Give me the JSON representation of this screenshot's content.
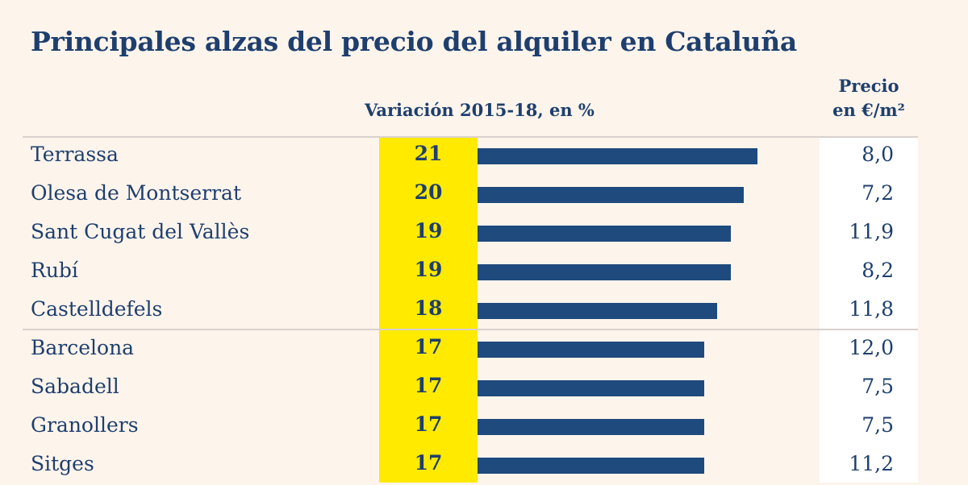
{
  "chart_data": {
    "type": "bar",
    "orientation": "horizontal",
    "title": "Principales alzas del precio del alquiler en Cataluña",
    "value_header": "Variación 2015-18, en %",
    "price_header": [
      "Precio",
      "en €/m²"
    ],
    "categories": [
      "Terrassa",
      "Olesa de Montserrat",
      "Sant Cugat del Vallès",
      "Rubí",
      "Castelldefels",
      "Barcelona",
      "Sabadell",
      "Granollers",
      "Sitges"
    ],
    "values": [
      21,
      20,
      19,
      19,
      18,
      17,
      17,
      17,
      17
    ],
    "prices": [
      "8,0",
      "7,2",
      "11,9",
      "8,2",
      "11,8",
      "12,0",
      "7,5",
      "7,5",
      "11,2"
    ],
    "colors": {
      "bar": "#1e4a7d",
      "highlight": "#ffea00",
      "text": "#1e3f6e",
      "background": "#fdf4ec"
    }
  }
}
